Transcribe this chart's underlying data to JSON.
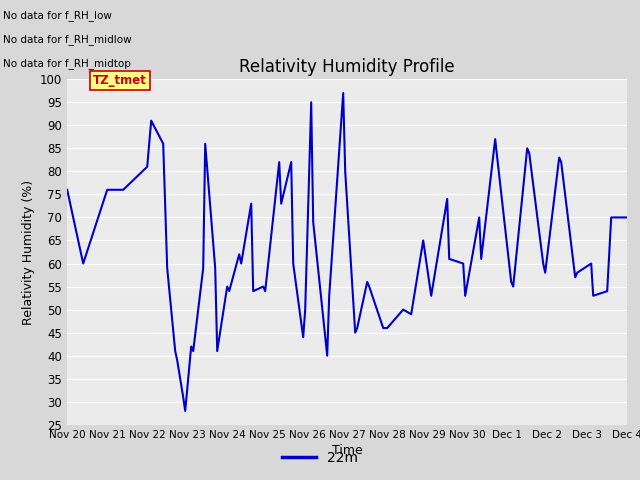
{
  "title": "Relativity Humidity Profile",
  "xlabel": "Time",
  "ylabel": "Relativity Humidity (%)",
  "ylim": [
    25,
    100
  ],
  "yticks": [
    25,
    30,
    35,
    40,
    45,
    50,
    55,
    60,
    65,
    70,
    75,
    80,
    85,
    90,
    95,
    100
  ],
  "line_color": "#0000CC",
  "line_width": 1.5,
  "legend_label": "22m",
  "no_data_texts": [
    "No data for f_RH_low",
    "No data for f_RH_midlow",
    "No data for f_RH_midtop"
  ],
  "tz_label": "TZ_tmet",
  "x_values": [
    0.0,
    0.4,
    1.0,
    1.4,
    2.0,
    2.1,
    2.4,
    2.5,
    2.7,
    2.75,
    2.9,
    2.95,
    3.1,
    3.15,
    3.4,
    3.45,
    3.7,
    3.75,
    4.0,
    4.05,
    4.3,
    4.35,
    4.6,
    4.65,
    4.9,
    4.95,
    5.3,
    5.35,
    5.6,
    5.65,
    5.9,
    5.95,
    6.1,
    6.15,
    6.5,
    6.55,
    6.9,
    6.95,
    7.2,
    7.25,
    7.5,
    7.55,
    7.9,
    8.0,
    8.4,
    8.6,
    8.9,
    9.1,
    9.5,
    9.55,
    9.9,
    9.95,
    10.3,
    10.35,
    10.7,
    10.75,
    11.1,
    11.15,
    11.5,
    11.55,
    11.9,
    11.95,
    12.3,
    12.35,
    12.7,
    12.75,
    13.1,
    13.15,
    13.5,
    13.6,
    14.0
  ],
  "y_values": [
    76,
    60,
    76,
    76,
    81,
    91,
    86,
    59,
    41,
    39,
    31,
    28,
    42,
    41,
    59,
    86,
    59,
    41,
    55,
    54,
    62,
    60,
    73,
    54,
    55,
    54,
    82,
    73,
    82,
    60,
    44,
    50,
    95,
    69,
    40,
    53,
    97,
    80,
    45,
    46,
    56,
    55,
    46,
    46,
    50,
    49,
    65,
    53,
    74,
    61,
    60,
    53,
    70,
    61,
    87,
    83,
    56,
    55,
    85,
    84,
    60,
    58,
    83,
    82,
    57,
    58,
    60,
    53,
    54,
    70,
    70
  ],
  "xtick_labels": [
    "Nov 20",
    "Nov 21",
    "Nov 22",
    "Nov 23",
    "Nov 24",
    "Nov 25",
    "Nov 26",
    "Nov 27",
    "Nov 28",
    "Nov 29",
    "Nov 30",
    "Dec 1",
    "Dec 2",
    "Dec 3",
    "Dec 4"
  ],
  "xtick_positions": [
    0,
    1,
    2,
    3,
    4,
    5,
    6,
    7,
    8,
    9,
    10,
    11,
    12,
    13,
    14
  ],
  "figsize": [
    6.4,
    4.8
  ],
  "dpi": 100
}
